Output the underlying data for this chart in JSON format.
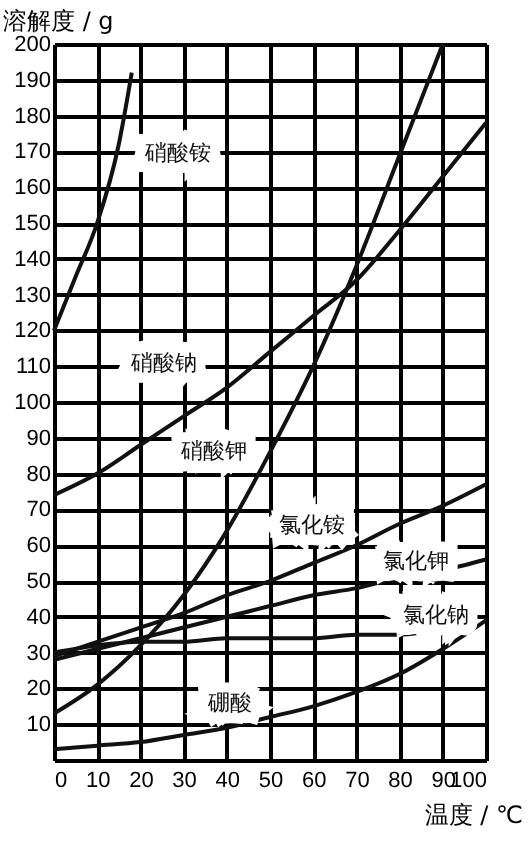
{
  "chart_data": {
    "type": "line",
    "xlabel": "温度 / ℃",
    "ylabel": "溶解度 / g",
    "x": [
      0,
      10,
      20,
      30,
      40,
      50,
      60,
      70,
      80,
      90,
      100
    ],
    "series": [
      {
        "name": "硝酸铵",
        "color": "#111111",
        "x": [
          0,
          5,
          10,
          15,
          18
        ],
        "values": [
          120,
          135,
          150,
          172,
          192
        ]
      },
      {
        "name": "硝酸钠",
        "color": "#111111",
        "values": [
          74,
          80,
          88,
          96,
          104,
          114,
          124,
          134,
          148,
          163,
          178
        ]
      },
      {
        "name": "硝酸钾",
        "color": "#111111",
        "values": [
          13,
          21,
          32,
          46,
          64,
          86,
          110,
          138,
          169,
          200,
          null
        ]
      },
      {
        "name": "氯化铵",
        "color": "#111111",
        "values": [
          29,
          33,
          37,
          41,
          46,
          50,
          55,
          60,
          66,
          71,
          77
        ]
      },
      {
        "name": "氯化钾",
        "color": "#111111",
        "values": [
          28,
          31,
          34,
          37,
          40,
          43,
          46,
          48,
          51,
          53,
          56
        ]
      },
      {
        "name": "氯化钠",
        "color": "#111111",
        "values": [
          30,
          32,
          33,
          33,
          34,
          34,
          34,
          35,
          35,
          37,
          null
        ]
      },
      {
        "name": "硼酸",
        "color": "#111111",
        "values": [
          3,
          4,
          5,
          7,
          9,
          12,
          15,
          19,
          24,
          31,
          39
        ]
      }
    ],
    "xlim": [
      0,
      100
    ],
    "ylim": [
      0,
      200
    ],
    "xticks": [
      0,
      10,
      20,
      30,
      40,
      50,
      60,
      70,
      80,
      90,
      100
    ],
    "yticks": [
      10,
      20,
      30,
      40,
      50,
      60,
      70,
      80,
      90,
      100,
      110,
      120,
      130,
      140,
      150,
      160,
      170,
      180,
      190,
      200
    ],
    "grid": true,
    "legend": false,
    "marker": "none",
    "line_style": "solid"
  }
}
